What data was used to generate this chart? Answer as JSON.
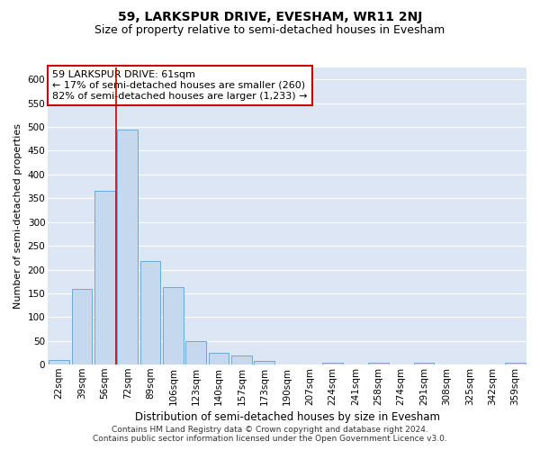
{
  "title": "59, LARKSPUR DRIVE, EVESHAM, WR11 2NJ",
  "subtitle": "Size of property relative to semi-detached houses in Evesham",
  "xlabel": "Distribution of semi-detached houses by size in Evesham",
  "ylabel": "Number of semi-detached properties",
  "categories": [
    "22sqm",
    "39sqm",
    "56sqm",
    "72sqm",
    "89sqm",
    "106sqm",
    "123sqm",
    "140sqm",
    "157sqm",
    "173sqm",
    "190sqm",
    "207sqm",
    "224sqm",
    "241sqm",
    "258sqm",
    "274sqm",
    "291sqm",
    "308sqm",
    "325sqm",
    "342sqm",
    "359sqm"
  ],
  "values": [
    10,
    160,
    365,
    495,
    218,
    163,
    50,
    25,
    20,
    8,
    0,
    0,
    5,
    0,
    5,
    0,
    5,
    0,
    0,
    0,
    5
  ],
  "bar_color": "#c5d8ee",
  "bar_edge_color": "#6aaad4",
  "background_color": "#dce6f5",
  "grid_color": "#ffffff",
  "vline_x": 2.5,
  "vline_color": "#cc0000",
  "annotation_line1": "59 LARKSPUR DRIVE: 61sqm",
  "annotation_line2": "← 17% of semi-detached houses are smaller (260)",
  "annotation_line3": "82% of semi-detached houses are larger (1,233) →",
  "annotation_box_color": "#ffffff",
  "annotation_box_edge": "#cc0000",
  "ylim": [
    0,
    625
  ],
  "yticks": [
    0,
    50,
    100,
    150,
    200,
    250,
    300,
    350,
    400,
    450,
    500,
    550,
    600
  ],
  "footnote": "Contains HM Land Registry data © Crown copyright and database right 2024.\nContains public sector information licensed under the Open Government Licence v3.0.",
  "title_fontsize": 10,
  "subtitle_fontsize": 9,
  "xlabel_fontsize": 8.5,
  "ylabel_fontsize": 8,
  "tick_fontsize": 7.5,
  "annotation_fontsize": 8,
  "footnote_fontsize": 6.5
}
